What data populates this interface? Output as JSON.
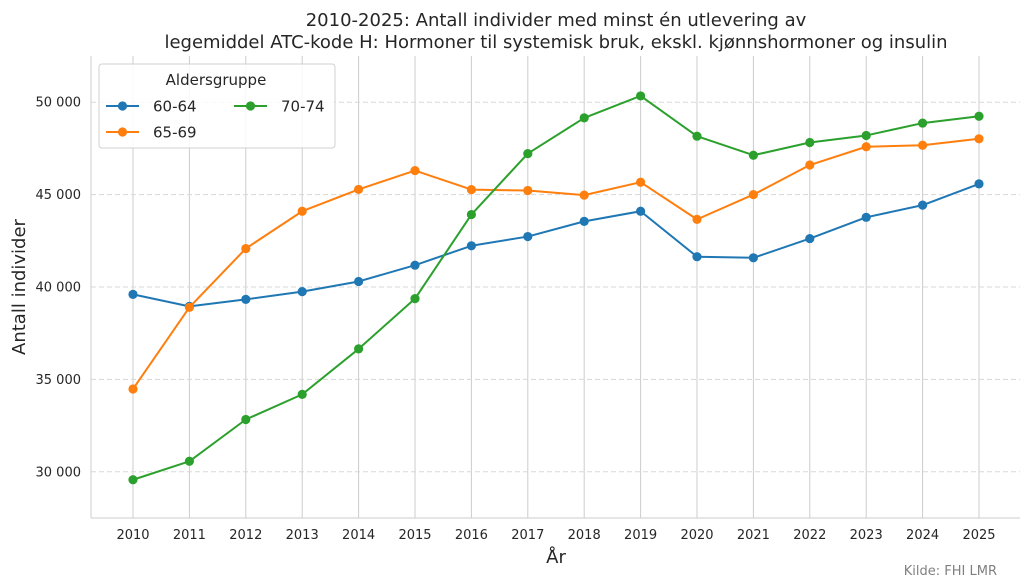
{
  "chart_data": {
    "type": "line",
    "title_line1": "2010-2025: Antall individer med minst én utlevering av",
    "title_line2": "legemiddel ATC-kode H: Hormoner til systemisk bruk, ekskl. kjønnshormoner og insulin",
    "xlabel": "År",
    "ylabel": "Antall individer",
    "x": [
      "2010",
      "2011",
      "2012",
      "2013",
      "2014",
      "2015",
      "2016",
      "2017",
      "2018",
      "2019",
      "2020",
      "2021",
      "2022",
      "2023",
      "2024",
      "2025"
    ],
    "ylim": [
      27500,
      52500
    ],
    "yticks": [
      30000,
      35000,
      40000,
      45000,
      50000
    ],
    "ytick_labels": [
      "30 000",
      "35 000",
      "40 000",
      "45 000",
      "50 000"
    ],
    "grid": {
      "x": "solid",
      "y": "dashed"
    },
    "legend": {
      "title": "Aldersgruppe",
      "placement": "top-left",
      "columns": 2
    },
    "series": [
      {
        "name": "60-64",
        "color": "#1f77b4",
        "values": [
          39600,
          38950,
          39330,
          39750,
          40300,
          41180,
          42230,
          42730,
          43550,
          44100,
          41640,
          41580,
          42620,
          43770,
          44430,
          45580
        ]
      },
      {
        "name": "65-69",
        "color": "#ff7f0e",
        "values": [
          34480,
          38900,
          42080,
          44100,
          45280,
          46300,
          45270,
          45220,
          44970,
          45670,
          43660,
          45000,
          46600,
          47590,
          47670,
          48020
        ]
      },
      {
        "name": "70-74",
        "color": "#2ca02c",
        "values": [
          29570,
          30570,
          32830,
          34190,
          36650,
          39370,
          43920,
          47220,
          49150,
          50340,
          48160,
          47130,
          47820,
          48200,
          48870,
          49240
        ]
      }
    ],
    "source": "Kilde: FHI LMR"
  }
}
